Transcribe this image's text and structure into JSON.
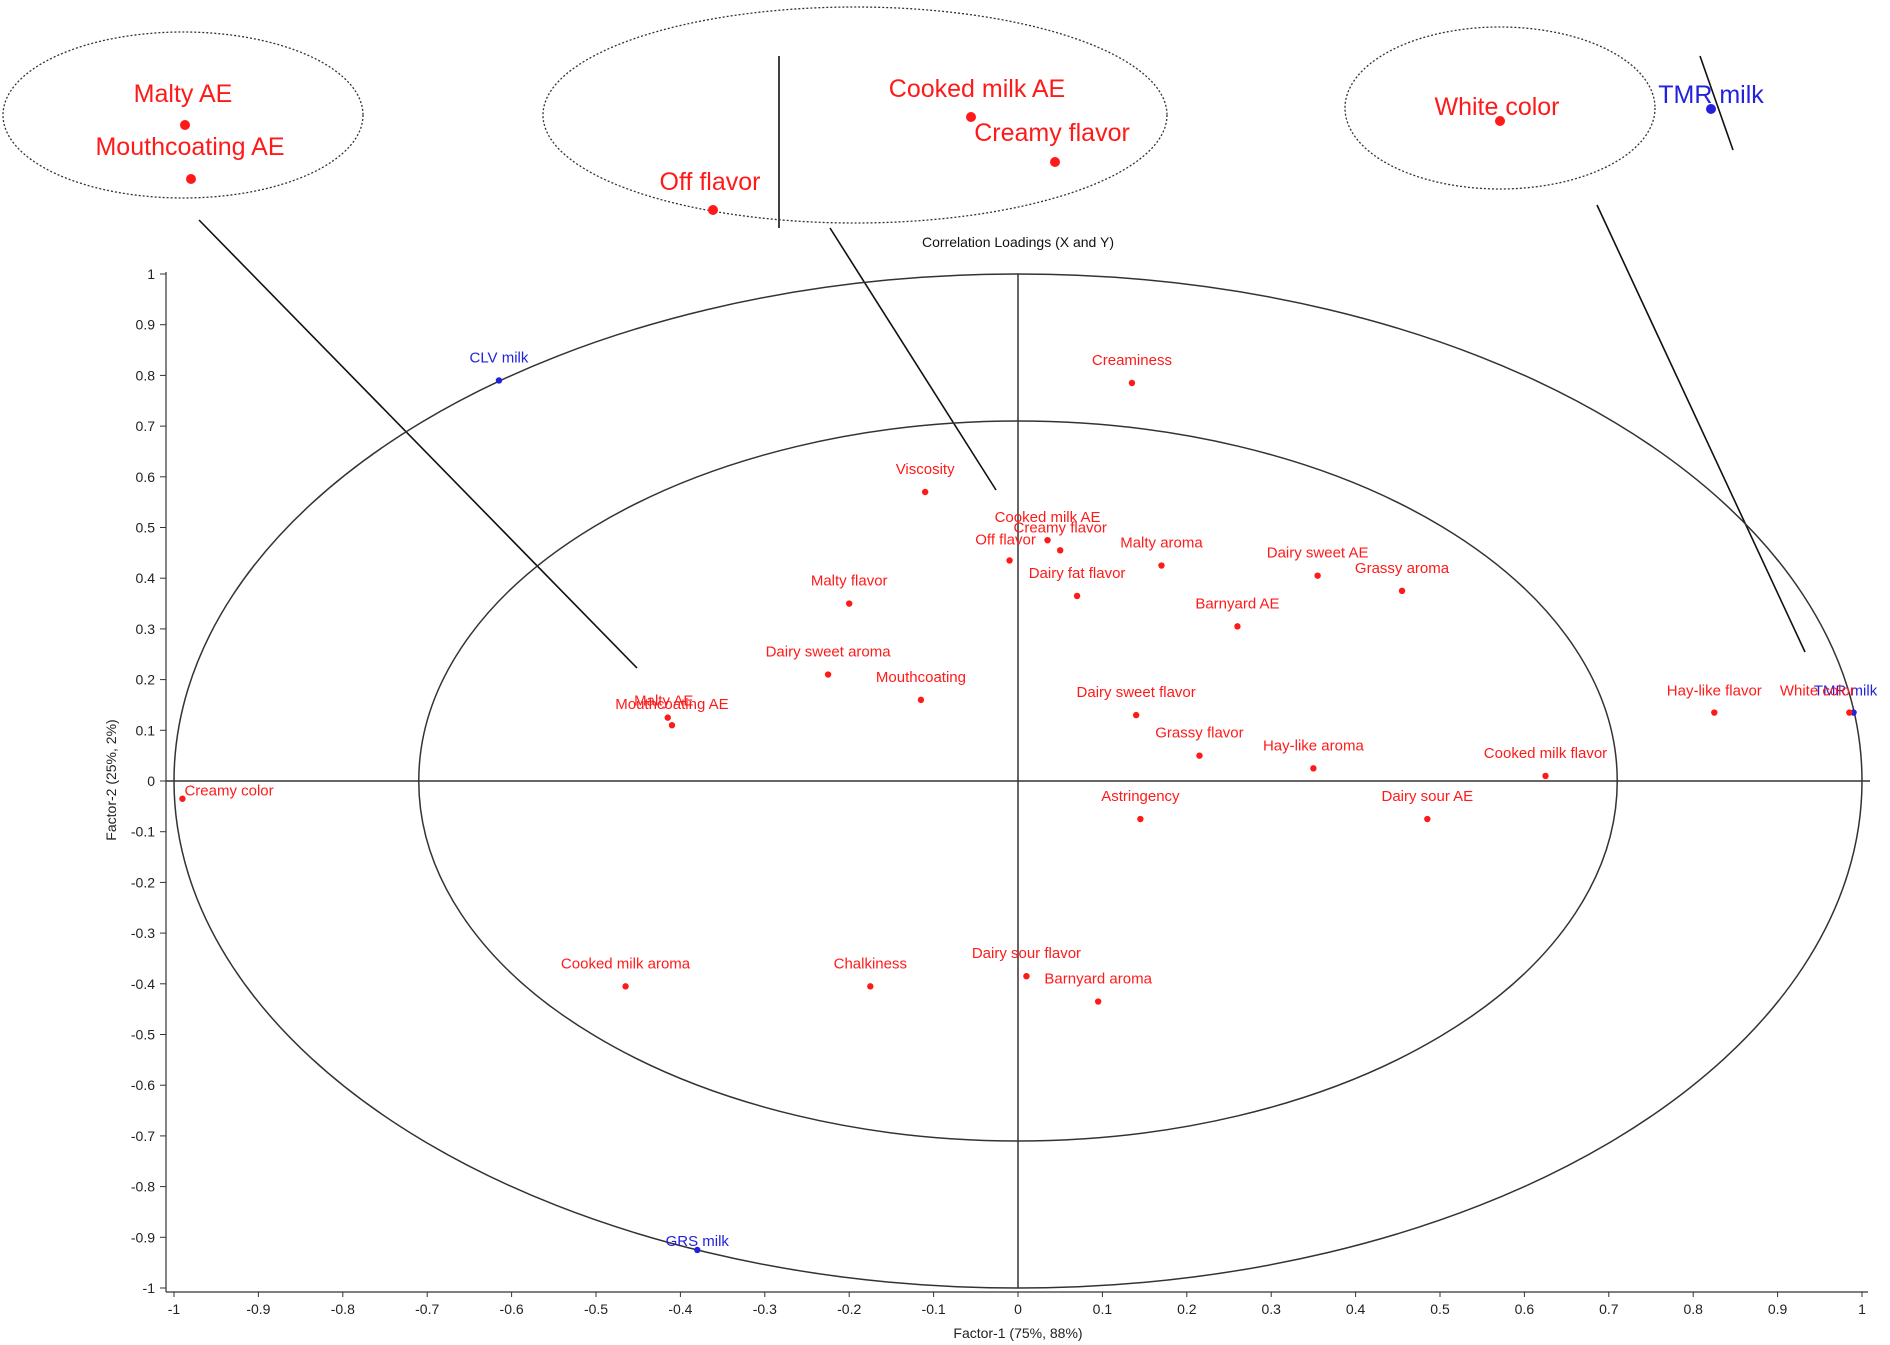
{
  "chart_data": {
    "type": "scatter",
    "title": "Correlation Loadings (X and Y)",
    "xlabel": "Factor-1 (75%, 88%)",
    "ylabel": "Factor-2 (25%, 2%)",
    "xlim": [
      -1,
      1
    ],
    "ylim": [
      -1,
      1
    ],
    "xticks": [
      "-1",
      "-0.9",
      "-0.8",
      "-0.7",
      "-0.6",
      "-0.5",
      "-0.4",
      "-0.3",
      "-0.2",
      "-0.1",
      "0",
      "0.1",
      "0.2",
      "0.3",
      "0.4",
      "0.5",
      "0.6",
      "0.7",
      "0.8",
      "0.9",
      "1"
    ],
    "yticks": [
      "1",
      "0.9",
      "0.8",
      "0.7",
      "0.6",
      "0.5",
      "0.4",
      "0.3",
      "0.2",
      "0.1",
      "0",
      "-0.1",
      "-0.2",
      "-0.3",
      "-0.4",
      "-0.5",
      "-0.6",
      "-0.7",
      "-0.8",
      "-0.9",
      "-1"
    ],
    "reference_circles": [
      1.0,
      0.71
    ],
    "colors": {
      "sensory": "#ff1a1a",
      "milk": "#2222dd"
    },
    "points": [
      {
        "label": "CLV milk",
        "x": -0.615,
        "y": 0.79,
        "group": "milk"
      },
      {
        "label": "GRS milk",
        "x": -0.38,
        "y": -0.925,
        "group": "milk"
      },
      {
        "label": "TMR milk",
        "x": 0.99,
        "y": 0.135,
        "group": "milk"
      },
      {
        "label": "White color",
        "x": 0.985,
        "y": 0.135,
        "group": "sensory"
      },
      {
        "label": "Creaminess",
        "x": 0.135,
        "y": 0.785,
        "group": "sensory"
      },
      {
        "label": "Viscosity",
        "x": -0.11,
        "y": 0.57,
        "group": "sensory"
      },
      {
        "label": "Cooked milk AE",
        "x": 0.035,
        "y": 0.475,
        "group": "sensory"
      },
      {
        "label": "Creamy flavor",
        "x": 0.05,
        "y": 0.455,
        "group": "sensory"
      },
      {
        "label": "Off flavor",
        "x": -0.01,
        "y": 0.435,
        "group": "sensory"
      },
      {
        "label": "Malty aroma",
        "x": 0.17,
        "y": 0.425,
        "group": "sensory"
      },
      {
        "label": "Dairy sweet AE",
        "x": 0.355,
        "y": 0.405,
        "group": "sensory"
      },
      {
        "label": "Grassy aroma",
        "x": 0.455,
        "y": 0.375,
        "group": "sensory"
      },
      {
        "label": "Dairy fat flavor",
        "x": 0.07,
        "y": 0.365,
        "group": "sensory"
      },
      {
        "label": "Malty flavor",
        "x": -0.2,
        "y": 0.35,
        "group": "sensory"
      },
      {
        "label": "Barnyard AE",
        "x": 0.26,
        "y": 0.305,
        "group": "sensory"
      },
      {
        "label": "Dairy sweet aroma",
        "x": -0.225,
        "y": 0.21,
        "group": "sensory"
      },
      {
        "label": "Mouthcoating",
        "x": -0.115,
        "y": 0.16,
        "group": "sensory"
      },
      {
        "label": "Malty AE",
        "x": -0.415,
        "y": 0.125,
        "group": "sensory"
      },
      {
        "label": "Mouthcoating AE",
        "x": -0.41,
        "y": 0.11,
        "group": "sensory"
      },
      {
        "label": "Dairy sweet flavor",
        "x": 0.14,
        "y": 0.13,
        "group": "sensory"
      },
      {
        "label": "Hay-like flavor",
        "x": 0.825,
        "y": 0.135,
        "group": "sensory"
      },
      {
        "label": "Grassy flavor",
        "x": 0.215,
        "y": 0.05,
        "group": "sensory"
      },
      {
        "label": "Hay-like aroma",
        "x": 0.35,
        "y": 0.025,
        "group": "sensory"
      },
      {
        "label": "Cooked milk flavor",
        "x": 0.625,
        "y": 0.01,
        "group": "sensory"
      },
      {
        "label": "Creamy color",
        "x": -0.99,
        "y": -0.035,
        "group": "sensory"
      },
      {
        "label": "Astringency",
        "x": 0.145,
        "y": -0.075,
        "group": "sensory"
      },
      {
        "label": "Dairy sour AE",
        "x": 0.485,
        "y": -0.075,
        "group": "sensory"
      },
      {
        "label": "Cooked milk aroma",
        "x": -0.465,
        "y": -0.405,
        "group": "sensory"
      },
      {
        "label": "Chalkiness",
        "x": -0.175,
        "y": -0.405,
        "group": "sensory"
      },
      {
        "label": "Dairy sour flavor",
        "x": 0.01,
        "y": -0.385,
        "group": "sensory"
      },
      {
        "label": "Barnyard aroma",
        "x": 0.095,
        "y": -0.435,
        "group": "sensory"
      }
    ],
    "zoom_callouts": [
      {
        "labels": [
          {
            "label": "Malty AE",
            "group": "sensory"
          },
          {
            "label": "Mouthcoating AE",
            "group": "sensory"
          }
        ]
      },
      {
        "labels": [
          {
            "label": "Cooked milk AE",
            "group": "sensory"
          },
          {
            "label": "Creamy flavor",
            "group": "sensory"
          },
          {
            "label": "Off flavor",
            "group": "sensory"
          }
        ]
      },
      {
        "labels": [
          {
            "label": "White color",
            "group": "sensory"
          },
          {
            "label": "TMR milk",
            "group": "milk"
          }
        ]
      }
    ]
  }
}
